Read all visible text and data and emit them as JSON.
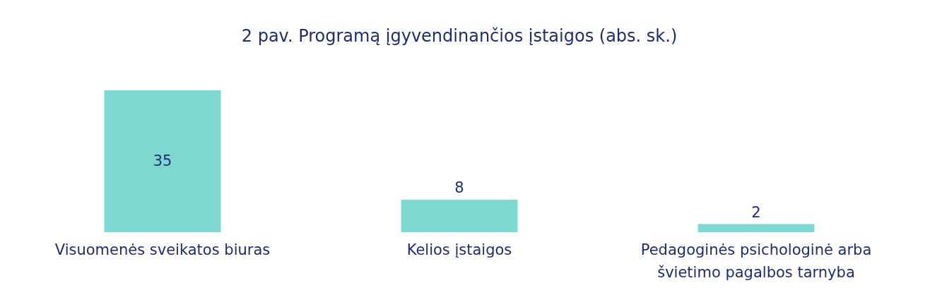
{
  "chart_data": {
    "type": "bar",
    "title": "2 pav. Programą įgyvendinančios įstaigos (abs. sk.)",
    "categories": [
      "Visuomenės sveikatos biuras",
      "Kelios įstaigos",
      "Pedagoginės psichologinė arba švietimo pagalbos tarnyba"
    ],
    "values": [
      35,
      8,
      2
    ],
    "color": "#7fd8d0",
    "data_labels": true
  }
}
